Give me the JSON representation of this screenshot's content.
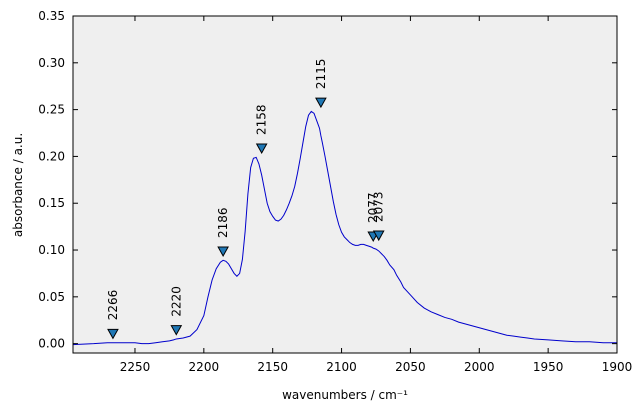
{
  "chart_data": {
    "type": "line",
    "xlabel": "wavenumbers / cm⁻¹",
    "ylabel": "absorbance / a.u.",
    "xlim": [
      2295,
      1900
    ],
    "ylim": [
      -0.01,
      0.35
    ],
    "x_reversed": true,
    "grid": false,
    "background_color": "#efefef",
    "line_color": "#0000cc",
    "marker_color": "#1f77b4",
    "x_ticks": [
      2250,
      2200,
      2150,
      2100,
      2050,
      2000,
      1950,
      1900
    ],
    "y_ticks": [
      0.0,
      0.05,
      0.1,
      0.15,
      0.2,
      0.25,
      0.3,
      0.35
    ],
    "x_tick_labels": [
      "2250",
      "2200",
      "2150",
      "2100",
      "2050",
      "2000",
      "1950",
      "1900"
    ],
    "y_tick_labels": [
      "0.00",
      "0.05",
      "0.10",
      "0.15",
      "0.20",
      "0.25",
      "0.30",
      "0.35"
    ],
    "series": [
      {
        "x": [
          2295,
          2280,
          2270,
          2260,
          2250,
          2245,
          2240,
          2235,
          2230,
          2225,
          2222,
          2220,
          2215,
          2210,
          2205,
          2200,
          2197,
          2194,
          2191,
          2188,
          2186,
          2184,
          2182,
          2180,
          2178,
          2176,
          2174,
          2172,
          2170,
          2168,
          2166,
          2164,
          2162,
          2160,
          2158,
          2156,
          2154,
          2152,
          2150,
          2148,
          2146,
          2144,
          2142,
          2140,
          2138,
          2136,
          2134,
          2132,
          2130,
          2128,
          2126,
          2124,
          2122,
          2120,
          2118,
          2116,
          2115,
          2114,
          2112,
          2110,
          2108,
          2106,
          2104,
          2102,
          2100,
          2098,
          2096,
          2094,
          2092,
          2090,
          2088,
          2086,
          2084,
          2082,
          2080,
          2078,
          2077,
          2075,
          2073,
          2071,
          2069,
          2067,
          2065,
          2062,
          2060,
          2057,
          2055,
          2050,
          2045,
          2040,
          2035,
          2030,
          2025,
          2020,
          2015,
          2010,
          2005,
          2000,
          1995,
          1990,
          1985,
          1980,
          1975,
          1970,
          1965,
          1960,
          1950,
          1940,
          1930,
          1920,
          1910,
          1900
        ],
        "y": [
          -0.001,
          0.0,
          0.001,
          0.001,
          0.001,
          0.0,
          0.0,
          0.001,
          0.002,
          0.003,
          0.004,
          0.005,
          0.006,
          0.008,
          0.015,
          0.03,
          0.05,
          0.068,
          0.08,
          0.087,
          0.089,
          0.088,
          0.085,
          0.08,
          0.075,
          0.072,
          0.075,
          0.09,
          0.12,
          0.16,
          0.188,
          0.198,
          0.199,
          0.192,
          0.18,
          0.165,
          0.15,
          0.141,
          0.136,
          0.132,
          0.131,
          0.133,
          0.137,
          0.143,
          0.15,
          0.158,
          0.168,
          0.182,
          0.198,
          0.215,
          0.232,
          0.244,
          0.248,
          0.246,
          0.238,
          0.23,
          0.222,
          0.215,
          0.2,
          0.184,
          0.168,
          0.152,
          0.138,
          0.127,
          0.119,
          0.114,
          0.111,
          0.108,
          0.106,
          0.105,
          0.105,
          0.106,
          0.106,
          0.105,
          0.104,
          0.103,
          0.102,
          0.101,
          0.099,
          0.096,
          0.093,
          0.089,
          0.084,
          0.079,
          0.073,
          0.066,
          0.06,
          0.052,
          0.044,
          0.038,
          0.034,
          0.031,
          0.028,
          0.026,
          0.023,
          0.021,
          0.019,
          0.017,
          0.015,
          0.013,
          0.011,
          0.009,
          0.008,
          0.007,
          0.006,
          0.005,
          0.004,
          0.003,
          0.002,
          0.002,
          0.001,
          0.001
        ]
      }
    ],
    "peaks": [
      {
        "label": "2266",
        "x": 2266,
        "y": 0.011
      },
      {
        "label": "2220",
        "x": 2220,
        "y": 0.015
      },
      {
        "label": "2186",
        "x": 2186,
        "y": 0.099
      },
      {
        "label": "2158",
        "x": 2158,
        "y": 0.209
      },
      {
        "label": "2115",
        "x": 2115,
        "y": 0.258
      },
      {
        "label": "2077",
        "x": 2077,
        "y": 0.115
      },
      {
        "label": "2073",
        "x": 2073,
        "y": 0.116
      }
    ]
  }
}
